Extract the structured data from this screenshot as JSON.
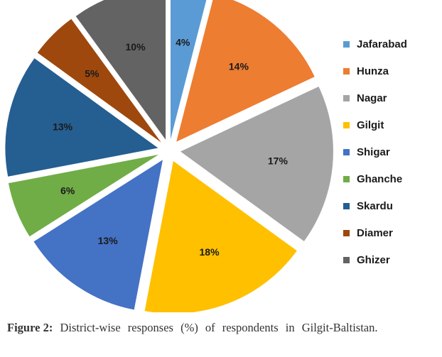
{
  "chart_data": {
    "type": "pie",
    "title": "",
    "categories": [
      "Jafarabad",
      "Hunza",
      "Nagar",
      "Gilgit",
      "Shigar",
      "Ghanche",
      "Skardu",
      "Diamer",
      "Ghizer"
    ],
    "values": [
      4,
      14,
      17,
      18,
      13,
      6,
      13,
      5,
      10
    ],
    "data_labels": [
      "4%",
      "14%",
      "17%",
      "18%",
      "13%",
      "6%",
      "13%",
      "5%",
      "10%"
    ],
    "colors": [
      "#5B9BD5",
      "#ED7D31",
      "#A5A5A5",
      "#FFC000",
      "#4472C4",
      "#70AD47",
      "#255E91",
      "#9E480E",
      "#636363"
    ],
    "exploded": true,
    "legend": "right"
  },
  "caption": {
    "figure_label": "Figure 2:",
    "text": "District-wise responses (%) of respondents in Gilgit-Baltistan."
  }
}
